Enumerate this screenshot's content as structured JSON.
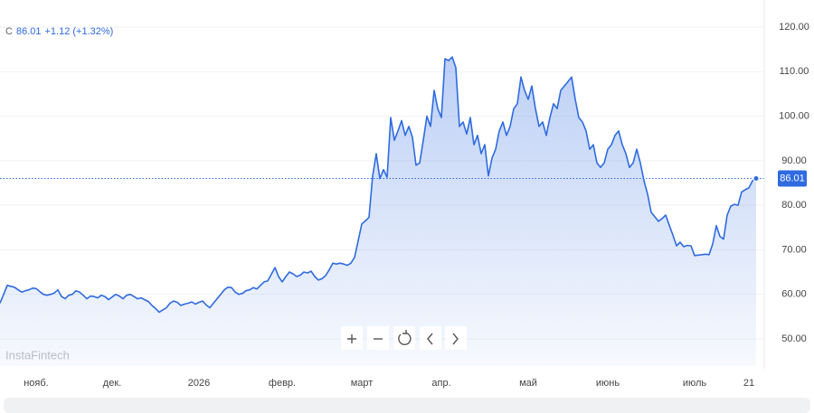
{
  "header": {
    "ohlc_label": "C",
    "change": "+1.12 (+1.32%)"
  },
  "watermark": "InstaFintech",
  "chart_data": {
    "type": "area-line",
    "color": "#2f6be0",
    "categories": [
      null,
      null,
      null,
      null,
      null,
      null,
      null,
      null,
      null,
      null,
      "нояб.",
      null,
      null,
      null,
      null,
      null,
      null,
      null,
      null,
      null,
      null,
      null,
      null,
      null,
      null,
      null,
      null,
      null,
      null,
      null,
      null,
      "дек.",
      null,
      null,
      null,
      null,
      null,
      null,
      null,
      null,
      null,
      null,
      null,
      null,
      null,
      null,
      null,
      null,
      null,
      null,
      null,
      null,
      null,
      null,
      null,
      "2026",
      null,
      null,
      null,
      null,
      null,
      null,
      null,
      null,
      null,
      null,
      null,
      null,
      null,
      null,
      null,
      null,
      null,
      null,
      null,
      null,
      null,
      null,
      "февр.",
      null,
      null,
      null,
      null,
      null,
      null,
      null,
      null,
      null,
      null,
      null,
      null,
      null,
      null,
      null,
      null,
      null,
      null,
      null,
      null,
      null,
      "март",
      null,
      null,
      null,
      null,
      null,
      null,
      null,
      null,
      null,
      null,
      null,
      null,
      null,
      null,
      null,
      null,
      null,
      null,
      null,
      null,
      null,
      "апр.",
      null,
      null,
      null,
      null,
      null,
      null,
      null,
      null,
      null,
      null,
      null,
      null,
      null,
      null,
      null,
      null,
      null,
      null,
      null,
      null,
      null,
      null,
      null,
      "май",
      null,
      null,
      null,
      null,
      null,
      null,
      null,
      null,
      null,
      null,
      null,
      null,
      null,
      null,
      null,
      null,
      null,
      null,
      null,
      null,
      null,
      "июнь",
      null,
      null,
      null,
      null,
      null,
      null,
      null,
      null,
      null,
      null,
      null,
      null,
      null,
      null,
      null,
      null,
      null,
      null,
      null,
      null,
      null,
      null,
      null,
      "июль",
      null,
      null,
      null,
      null,
      null,
      null,
      null,
      null,
      null,
      null,
      null,
      null,
      null,
      null,
      "21",
      null,
      null
    ],
    "values": [
      58,
      60,
      62,
      61.8,
      61.6,
      61,
      60.5,
      60.8,
      61,
      61.4,
      61.3,
      60.6,
      60,
      59.8,
      60,
      60.3,
      61,
      59.5,
      59,
      59.8,
      60,
      60.8,
      60.5,
      59.8,
      59,
      59.6,
      59.5,
      59.2,
      59.8,
      59.5,
      58.8,
      59.4,
      60,
      59.6,
      59,
      59.8,
      60,
      59.5,
      59,
      59.2,
      58.8,
      58.4,
      57.5,
      56.8,
      56,
      56.5,
      57,
      58,
      58.5,
      58.2,
      57.5,
      57.8,
      58,
      58.3,
      57.8,
      58.2,
      58.5,
      57.6,
      57,
      58,
      59,
      60,
      61,
      61.6,
      61.5,
      60.5,
      60,
      60.2,
      60.8,
      61,
      61.5,
      61.2,
      62,
      62.8,
      63,
      64.5,
      66,
      64,
      62.8,
      64,
      65,
      64.6,
      64,
      64.3,
      65,
      64.8,
      65.2,
      64,
      63.2,
      63.5,
      64.2,
      65.5,
      67,
      66.8,
      67,
      66.8,
      66.5,
      67,
      68.3,
      72,
      75.8,
      76.5,
      77.3,
      86.6,
      91.6,
      86,
      88,
      86.3,
      99.7,
      94.6,
      96.7,
      99,
      95.7,
      97.7,
      95.3,
      89,
      89.5,
      94.6,
      100,
      97.7,
      105.8,
      101.7,
      99.7,
      112.9,
      112.5,
      113.3,
      110.9,
      97.7,
      98.7,
      96,
      99.7,
      93.6,
      95.7,
      91.6,
      93.6,
      86.6,
      90.6,
      92.6,
      96.7,
      98.7,
      95.7,
      97.7,
      101.7,
      102.8,
      108.8,
      105.8,
      103.8,
      106.8,
      101.7,
      97.7,
      98.7,
      95.7,
      99.7,
      102.8,
      101.7,
      105.8,
      106.8,
      107.8,
      108.8,
      103.8,
      99.7,
      98.7,
      96.7,
      92.6,
      93.6,
      89.5,
      88.5,
      89.5,
      92.6,
      93.6,
      95.7,
      96.7,
      93.6,
      91.6,
      88.5,
      89.5,
      92.6,
      89.5,
      85.5,
      82.5,
      78.4,
      77.4,
      76.4,
      77,
      77.8,
      75.5,
      73.3,
      70.9,
      71.7,
      70.7,
      71,
      70.9,
      68.7,
      68.8,
      68.9,
      69,
      68.9,
      71.3,
      75.4,
      73,
      72.4,
      77.8,
      79.8,
      80.2,
      80,
      83,
      83.5,
      83.9,
      85.5,
      86.01
    ],
    "ylim": [
      43.9,
      126.1
    ],
    "yticks": [
      {
        "value": 50,
        "label": "50.00"
      },
      {
        "value": 60,
        "label": "60.00"
      },
      {
        "value": 70,
        "label": "70.00"
      },
      {
        "value": 80,
        "label": "80.00"
      },
      {
        "value": 90,
        "label": "90.00"
      },
      {
        "value": 100,
        "label": "100.00"
      },
      {
        "value": 110,
        "label": "110.00"
      },
      {
        "value": 120,
        "label": "120.00"
      }
    ],
    "grid": true
  }
}
